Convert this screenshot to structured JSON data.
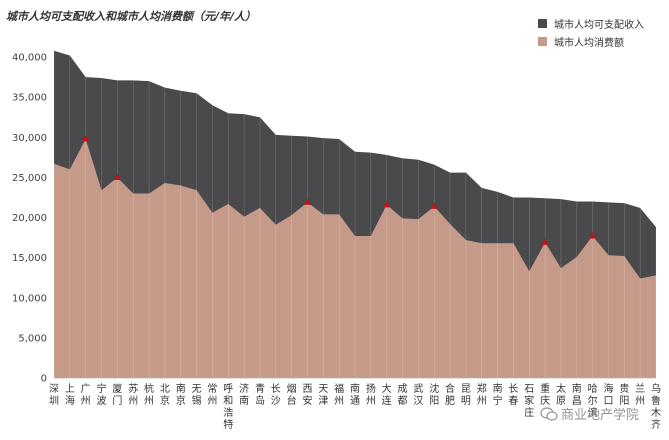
{
  "chart_data": {
    "type": "area",
    "title": "城市人均可支配收入和城市人均消费额（元/年/人）",
    "xlabel": "",
    "ylabel": "",
    "ylim": [
      0,
      45000
    ],
    "yticks": [
      0,
      5000,
      10000,
      15000,
      20000,
      25000,
      30000,
      35000,
      40000
    ],
    "ytick_labels": [
      "0",
      "5,000",
      "10,000",
      "15,000",
      "20,000",
      "25,000",
      "30,000",
      "35,000",
      "40,000"
    ],
    "grid": false,
    "legend_position": "top-right",
    "categories": [
      "深圳",
      "上海",
      "广州",
      "宁波",
      "厦门",
      "苏州",
      "杭州",
      "北京",
      "南京",
      "无锡",
      "常州",
      "呼和浩特",
      "济南",
      "青岛",
      "长沙",
      "烟台",
      "西安",
      "天津",
      "福州",
      "南通",
      "扬州",
      "大连",
      "成都",
      "武汉",
      "沈阳",
      "合肥",
      "昆明",
      "郑州",
      "南宁",
      "长春",
      "石家庄",
      "重庆",
      "太原",
      "南昌",
      "哈尔滨",
      "海口",
      "贵阳",
      "兰州",
      "乌鲁木齐"
    ],
    "series": [
      {
        "name": "城市人均可支配收入",
        "color": "#4a4a4d",
        "values": [
          40800,
          40200,
          37500,
          37400,
          37100,
          37100,
          37000,
          36200,
          35800,
          35500,
          34000,
          33000,
          32900,
          32500,
          30300,
          30200,
          30100,
          29900,
          29800,
          28200,
          28100,
          27800,
          27400,
          27200,
          26600,
          25600,
          25600,
          23700,
          23200,
          22500,
          22500,
          22400,
          22300,
          22000,
          22000,
          21900,
          21800,
          21200,
          18800
        ]
      },
      {
        "name": "城市人均消费额",
        "color": "#c69a89",
        "values": [
          26700,
          26000,
          29800,
          23400,
          25000,
          23000,
          23000,
          24300,
          24000,
          23400,
          20600,
          21700,
          20100,
          21200,
          19100,
          20300,
          21900,
          20400,
          20400,
          17700,
          17700,
          21600,
          19900,
          19800,
          21400,
          19200,
          17200,
          16800,
          16800,
          16800,
          13300,
          16900,
          13700,
          15100,
          17700,
          15300,
          15200,
          12400,
          12800
        ]
      }
    ]
  },
  "watermark": "商业地产学院"
}
